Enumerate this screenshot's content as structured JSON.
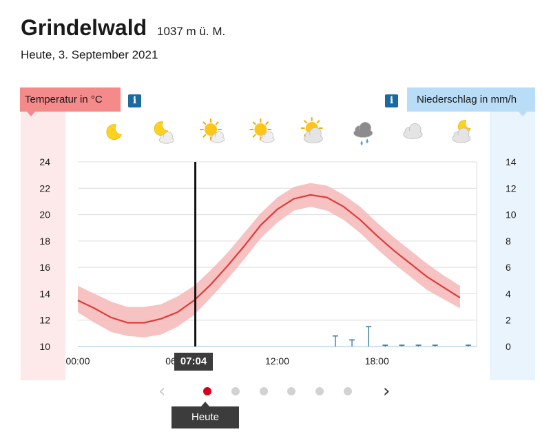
{
  "location": {
    "name": "Grindelwald",
    "altitude": "1037 m ü. M.",
    "date": "Heute, 3. September 2021"
  },
  "labels": {
    "temperature": "Temperatur in °C",
    "precipitation": "Niederschlag in mm/h",
    "info": "i"
  },
  "now": {
    "time": "07:04",
    "hour": 7.07,
    "today_label": "Heute"
  },
  "icons": [
    {
      "hour": 2,
      "name": "moon-icon"
    },
    {
      "hour": 5,
      "name": "moon-cloud-icon"
    },
    {
      "hour": 8,
      "name": "sun-cloud-icon"
    },
    {
      "hour": 11,
      "name": "sun-cloud-icon"
    },
    {
      "hour": 14,
      "name": "sun-cloudy-icon"
    },
    {
      "hour": 17,
      "name": "rain-cloud-icon"
    },
    {
      "hour": 20,
      "name": "cloud-icon"
    },
    {
      "hour": 23,
      "name": "moon-cloudy-icon"
    }
  ],
  "pager": {
    "pages": 6,
    "active": 0,
    "prev": "‹",
    "next": "›"
  },
  "chart_data": {
    "type": "line",
    "x_axis": {
      "min": 0,
      "max": 24,
      "ticks": [
        0,
        6,
        12,
        18
      ],
      "tick_labels": [
        "00:00",
        "06:00",
        "12:00",
        "18:00"
      ]
    },
    "y_left": {
      "min": 10,
      "max": 24,
      "ticks": [
        10,
        12,
        14,
        16,
        18,
        20,
        22,
        24
      ]
    },
    "y_right": {
      "min": 0,
      "max": 14,
      "ticks": [
        0,
        2,
        4,
        6,
        8,
        10,
        12,
        14
      ]
    },
    "grid": true,
    "temperature": {
      "x": [
        0,
        1,
        2,
        3,
        4,
        5,
        6,
        7,
        8,
        9,
        10,
        11,
        12,
        13,
        14,
        15,
        16,
        17,
        18,
        19,
        20,
        21,
        22,
        23
      ],
      "mean": [
        13.5,
        12.9,
        12.2,
        11.8,
        11.8,
        12.1,
        12.6,
        13.5,
        14.7,
        16.1,
        17.6,
        19.2,
        20.4,
        21.2,
        21.5,
        21.3,
        20.6,
        19.6,
        18.4,
        17.3,
        16.3,
        15.3,
        14.5,
        13.7
      ],
      "lower": [
        12.6,
        11.8,
        11.1,
        10.8,
        10.7,
        10.9,
        11.5,
        12.4,
        13.7,
        15.1,
        16.6,
        18.2,
        19.4,
        20.3,
        20.6,
        20.3,
        19.6,
        18.6,
        17.4,
        16.3,
        15.3,
        14.3,
        13.6,
        12.9
      ],
      "upper": [
        14.6,
        14.0,
        13.4,
        13.0,
        13.0,
        13.2,
        13.8,
        14.6,
        15.8,
        17.1,
        18.6,
        20.1,
        21.3,
        22.1,
        22.4,
        22.2,
        21.5,
        20.6,
        19.4,
        18.3,
        17.3,
        16.3,
        15.4,
        14.6
      ]
    },
    "precipitation": [
      {
        "hour": 15.5,
        "value": 0.8
      },
      {
        "hour": 16.5,
        "value": 0.5
      },
      {
        "hour": 17.5,
        "value": 1.5
      },
      {
        "hour": 18.5,
        "value": 0.1
      },
      {
        "hour": 19.5,
        "value": 0.1
      },
      {
        "hour": 20.5,
        "value": 0.1
      },
      {
        "hour": 21.5,
        "value": 0.1
      },
      {
        "hour": 23.5,
        "value": 0.1
      }
    ],
    "colors": {
      "line": "#dd3b3b",
      "band": "#f6b7b7",
      "rain": "#2d6e9e",
      "grid": "#dcdcdc",
      "now": "#111111"
    }
  }
}
